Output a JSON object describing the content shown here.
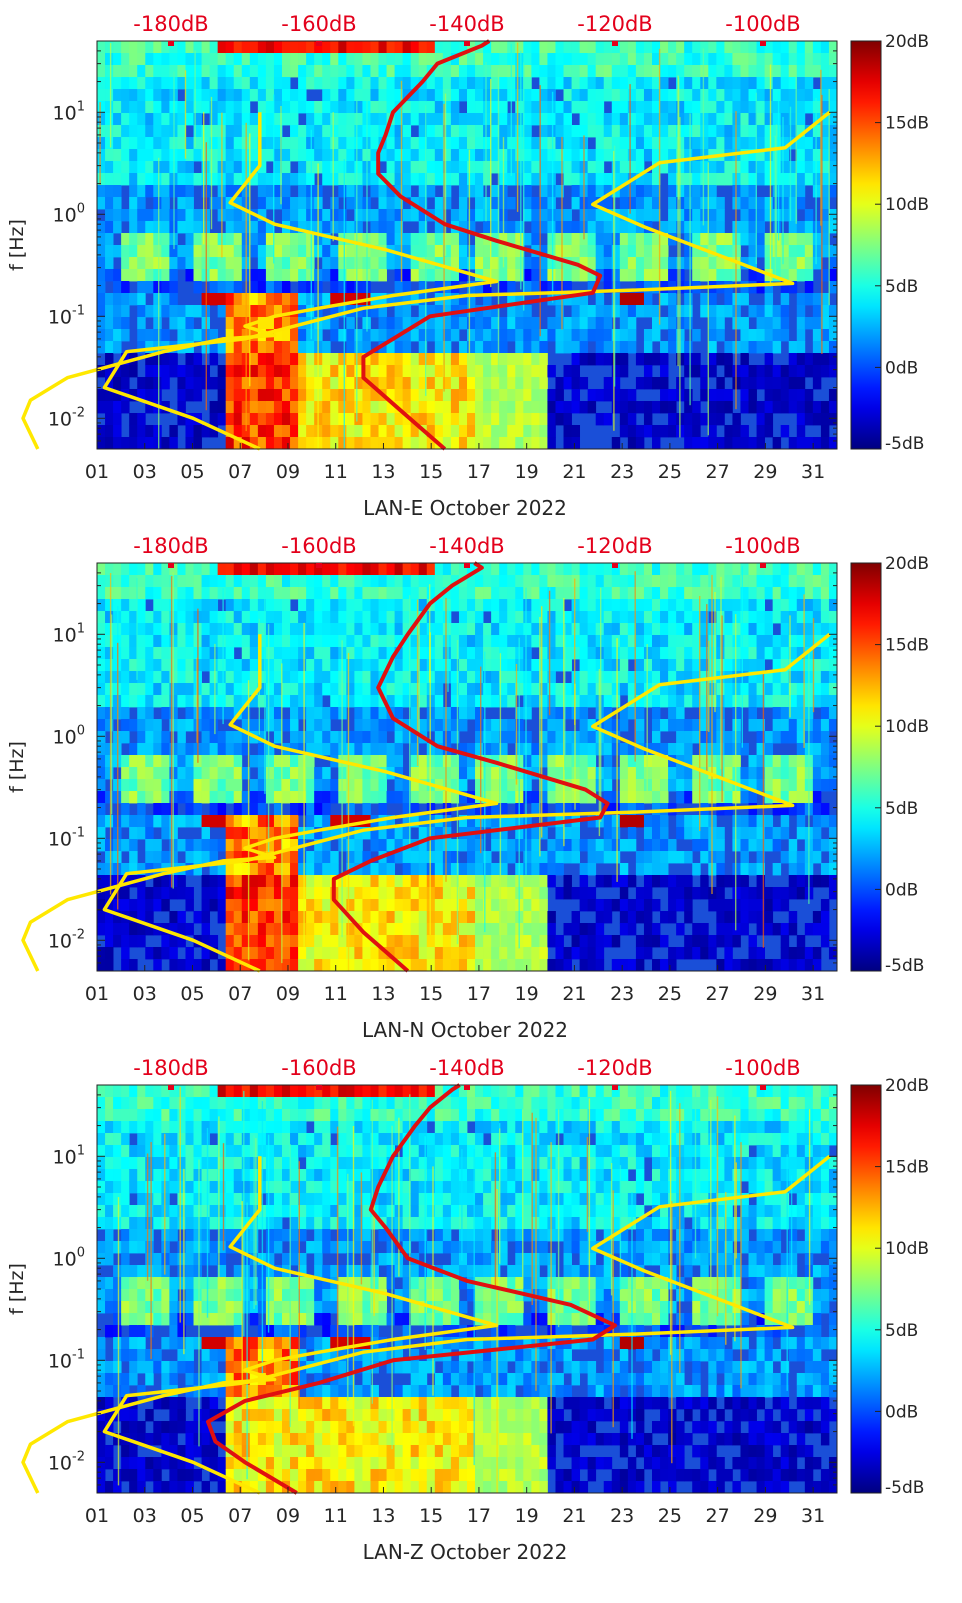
{
  "chart_data": [
    {
      "type": "heatmap",
      "xlabel": "LAN-E October 2022",
      "ylabel": "f [Hz]",
      "x_ticks": [
        "01",
        "03",
        "05",
        "07",
        "09",
        "11",
        "13",
        "15",
        "17",
        "19",
        "21",
        "23",
        "25",
        "27",
        "29",
        "31"
      ],
      "x_range_days": [
        1,
        32
      ],
      "y_scale": "log",
      "y_range_hz": [
        0.005,
        50
      ],
      "y_ticks": [
        "10-2",
        "10-1",
        "100",
        "101"
      ],
      "top_axis_ticks": [
        "-180dB",
        "-160dB",
        "-140dB",
        "-120dB",
        "-100dB"
      ],
      "colorbar_ticks": [
        "20dB",
        "15dB",
        "10dB",
        "5dB",
        "0dB",
        "-5dB"
      ],
      "colorbar_range_db": [
        -5,
        20
      ],
      "colors": {
        "low_noise_model": "#ffe800",
        "median_psd": "#e01010",
        "top_axis_text": "#e3001b"
      },
      "series": [
        {
          "style": "yellow",
          "points": [
            [
              -198,
              0.005
            ],
            [
              -200,
              0.01
            ],
            [
              -199,
              0.015
            ],
            [
              -194,
              0.025
            ],
            [
              -181,
              0.045
            ],
            [
              -173,
              0.06
            ],
            [
              -166,
              0.065
            ],
            [
              -170,
              0.08
            ],
            [
              -166,
              0.1
            ],
            [
              -160,
              0.12
            ],
            [
              -150,
              0.16
            ],
            [
              -136,
              0.22
            ],
            [
              -151,
              0.45
            ],
            [
              -166,
              0.8
            ],
            [
              -172,
              1.3
            ],
            [
              -168,
              3
            ],
            [
              -168,
              10
            ]
          ]
        },
        {
          "style": "yellow",
          "points": [
            [
              -168,
              0.005
            ],
            [
              -177,
              0.01
            ],
            [
              -189,
              0.02
            ],
            [
              -186,
              0.045
            ],
            [
              -170,
              0.06
            ],
            [
              -154,
              0.12
            ],
            [
              -140,
              0.16
            ],
            [
              -118,
              0.18
            ],
            [
              -96,
              0.21
            ],
            [
              -104,
              0.35
            ],
            [
              -116,
              0.75
            ],
            [
              -123,
              1.25
            ],
            [
              -114,
              3.2
            ],
            [
              -97,
              4.5
            ],
            [
              -91,
              10
            ]
          ]
        },
        {
          "style": "red",
          "points": [
            [
              -143,
              0.005
            ],
            [
              -149,
              0.012
            ],
            [
              -154,
              0.025
            ],
            [
              -154,
              0.04
            ],
            [
              -150,
              0.06
            ],
            [
              -145,
              0.1
            ],
            [
              -123,
              0.17
            ],
            [
              -122,
              0.25
            ],
            [
              -125,
              0.32
            ],
            [
              -136,
              0.55
            ],
            [
              -143,
              0.8
            ],
            [
              -149,
              1.5
            ],
            [
              -152,
              2.5
            ],
            [
              -152,
              4
            ],
            [
              -151,
              6
            ],
            [
              -150,
              10
            ],
            [
              -146,
              20
            ],
            [
              -144,
              30
            ],
            [
              -138,
              45
            ],
            [
              -137,
              50
            ]
          ]
        }
      ]
    },
    {
      "type": "heatmap",
      "xlabel": "LAN-N October 2022",
      "ylabel": "f [Hz]",
      "x_ticks": [
        "01",
        "03",
        "05",
        "07",
        "09",
        "11",
        "13",
        "15",
        "17",
        "19",
        "21",
        "23",
        "25",
        "27",
        "29",
        "31"
      ],
      "x_range_days": [
        1,
        32
      ],
      "y_scale": "log",
      "y_range_hz": [
        0.005,
        50
      ],
      "y_ticks": [
        "10-2",
        "10-1",
        "100",
        "101"
      ],
      "top_axis_ticks": [
        "-180dB",
        "-160dB",
        "-140dB",
        "-120dB",
        "-100dB"
      ],
      "colorbar_ticks": [
        "20dB",
        "15dB",
        "10dB",
        "5dB",
        "0dB",
        "-5dB"
      ],
      "colorbar_range_db": [
        -5,
        20
      ],
      "colors": {
        "low_noise_model": "#ffe800",
        "median_psd": "#e01010",
        "top_axis_text": "#e3001b"
      },
      "series": [
        {
          "style": "yellow",
          "points": [
            [
              -198,
              0.005
            ],
            [
              -200,
              0.01
            ],
            [
              -199,
              0.015
            ],
            [
              -194,
              0.025
            ],
            [
              -181,
              0.045
            ],
            [
              -173,
              0.06
            ],
            [
              -166,
              0.065
            ],
            [
              -170,
              0.08
            ],
            [
              -166,
              0.1
            ],
            [
              -160,
              0.12
            ],
            [
              -150,
              0.16
            ],
            [
              -136,
              0.22
            ],
            [
              -151,
              0.45
            ],
            [
              -166,
              0.8
            ],
            [
              -172,
              1.3
            ],
            [
              -168,
              3
            ],
            [
              -168,
              10
            ]
          ]
        },
        {
          "style": "yellow",
          "points": [
            [
              -168,
              0.005
            ],
            [
              -177,
              0.01
            ],
            [
              -189,
              0.02
            ],
            [
              -186,
              0.045
            ],
            [
              -170,
              0.06
            ],
            [
              -154,
              0.12
            ],
            [
              -140,
              0.16
            ],
            [
              -118,
              0.18
            ],
            [
              -96,
              0.21
            ],
            [
              -104,
              0.35
            ],
            [
              -116,
              0.75
            ],
            [
              -123,
              1.25
            ],
            [
              -114,
              3.2
            ],
            [
              -97,
              4.5
            ],
            [
              -91,
              10
            ]
          ]
        },
        {
          "style": "red",
          "points": [
            [
              -148,
              0.005
            ],
            [
              -154,
              0.012
            ],
            [
              -158,
              0.025
            ],
            [
              -158,
              0.04
            ],
            [
              -153,
              0.06
            ],
            [
              -145,
              0.1
            ],
            [
              -122,
              0.16
            ],
            [
              -121,
              0.22
            ],
            [
              -124,
              0.3
            ],
            [
              -136,
              0.55
            ],
            [
              -144,
              0.8
            ],
            [
              -150,
              1.5
            ],
            [
              -152,
              3
            ],
            [
              -150,
              6
            ],
            [
              -148,
              10
            ],
            [
              -145,
              20
            ],
            [
              -142,
              30
            ],
            [
              -138,
              45
            ],
            [
              -139,
              50
            ]
          ]
        }
      ]
    },
    {
      "type": "heatmap",
      "xlabel": "LAN-Z October 2022",
      "ylabel": "f [Hz]",
      "x_ticks": [
        "01",
        "03",
        "05",
        "07",
        "09",
        "11",
        "13",
        "15",
        "17",
        "19",
        "21",
        "23",
        "25",
        "27",
        "29",
        "31"
      ],
      "x_range_days": [
        1,
        32
      ],
      "y_scale": "log",
      "y_range_hz": [
        0.005,
        50
      ],
      "y_ticks": [
        "10-2",
        "10-1",
        "100",
        "101"
      ],
      "top_axis_ticks": [
        "-180dB",
        "-160dB",
        "-140dB",
        "-120dB",
        "-100dB"
      ],
      "colorbar_ticks": [
        "20dB",
        "15dB",
        "10dB",
        "5dB",
        "0dB",
        "-5dB"
      ],
      "colorbar_range_db": [
        -5,
        20
      ],
      "colors": {
        "low_noise_model": "#ffe800",
        "median_psd": "#e01010",
        "top_axis_text": "#e3001b"
      },
      "series": [
        {
          "style": "yellow",
          "points": [
            [
              -198,
              0.005
            ],
            [
              -200,
              0.01
            ],
            [
              -199,
              0.015
            ],
            [
              -194,
              0.025
            ],
            [
              -181,
              0.045
            ],
            [
              -173,
              0.06
            ],
            [
              -166,
              0.065
            ],
            [
              -170,
              0.08
            ],
            [
              -166,
              0.1
            ],
            [
              -160,
              0.12
            ],
            [
              -150,
              0.16
            ],
            [
              -136,
              0.22
            ],
            [
              -151,
              0.45
            ],
            [
              -166,
              0.8
            ],
            [
              -172,
              1.3
            ],
            [
              -168,
              3
            ],
            [
              -168,
              10
            ]
          ]
        },
        {
          "style": "yellow",
          "points": [
            [
              -168,
              0.005
            ],
            [
              -177,
              0.01
            ],
            [
              -189,
              0.02
            ],
            [
              -186,
              0.045
            ],
            [
              -170,
              0.06
            ],
            [
              -154,
              0.12
            ],
            [
              -140,
              0.16
            ],
            [
              -118,
              0.18
            ],
            [
              -96,
              0.21
            ],
            [
              -104,
              0.35
            ],
            [
              -116,
              0.75
            ],
            [
              -123,
              1.25
            ],
            [
              -114,
              3.2
            ],
            [
              -97,
              4.5
            ],
            [
              -91,
              10
            ]
          ]
        },
        {
          "style": "red",
          "points": [
            [
              -163,
              0.005
            ],
            [
              -170,
              0.01
            ],
            [
              -174,
              0.016
            ],
            [
              -175,
              0.025
            ],
            [
              -170,
              0.04
            ],
            [
              -160,
              0.06
            ],
            [
              -150,
              0.1
            ],
            [
              -123,
              0.16
            ],
            [
              -120,
              0.22
            ],
            [
              -126,
              0.35
            ],
            [
              -140,
              0.6
            ],
            [
              -148,
              1
            ],
            [
              -151,
              2
            ],
            [
              -153,
              3
            ],
            [
              -152,
              5
            ],
            [
              -150,
              10
            ],
            [
              -147,
              20
            ],
            [
              -145,
              30
            ],
            [
              -142,
              45
            ],
            [
              -141,
              50
            ]
          ]
        }
      ]
    }
  ]
}
